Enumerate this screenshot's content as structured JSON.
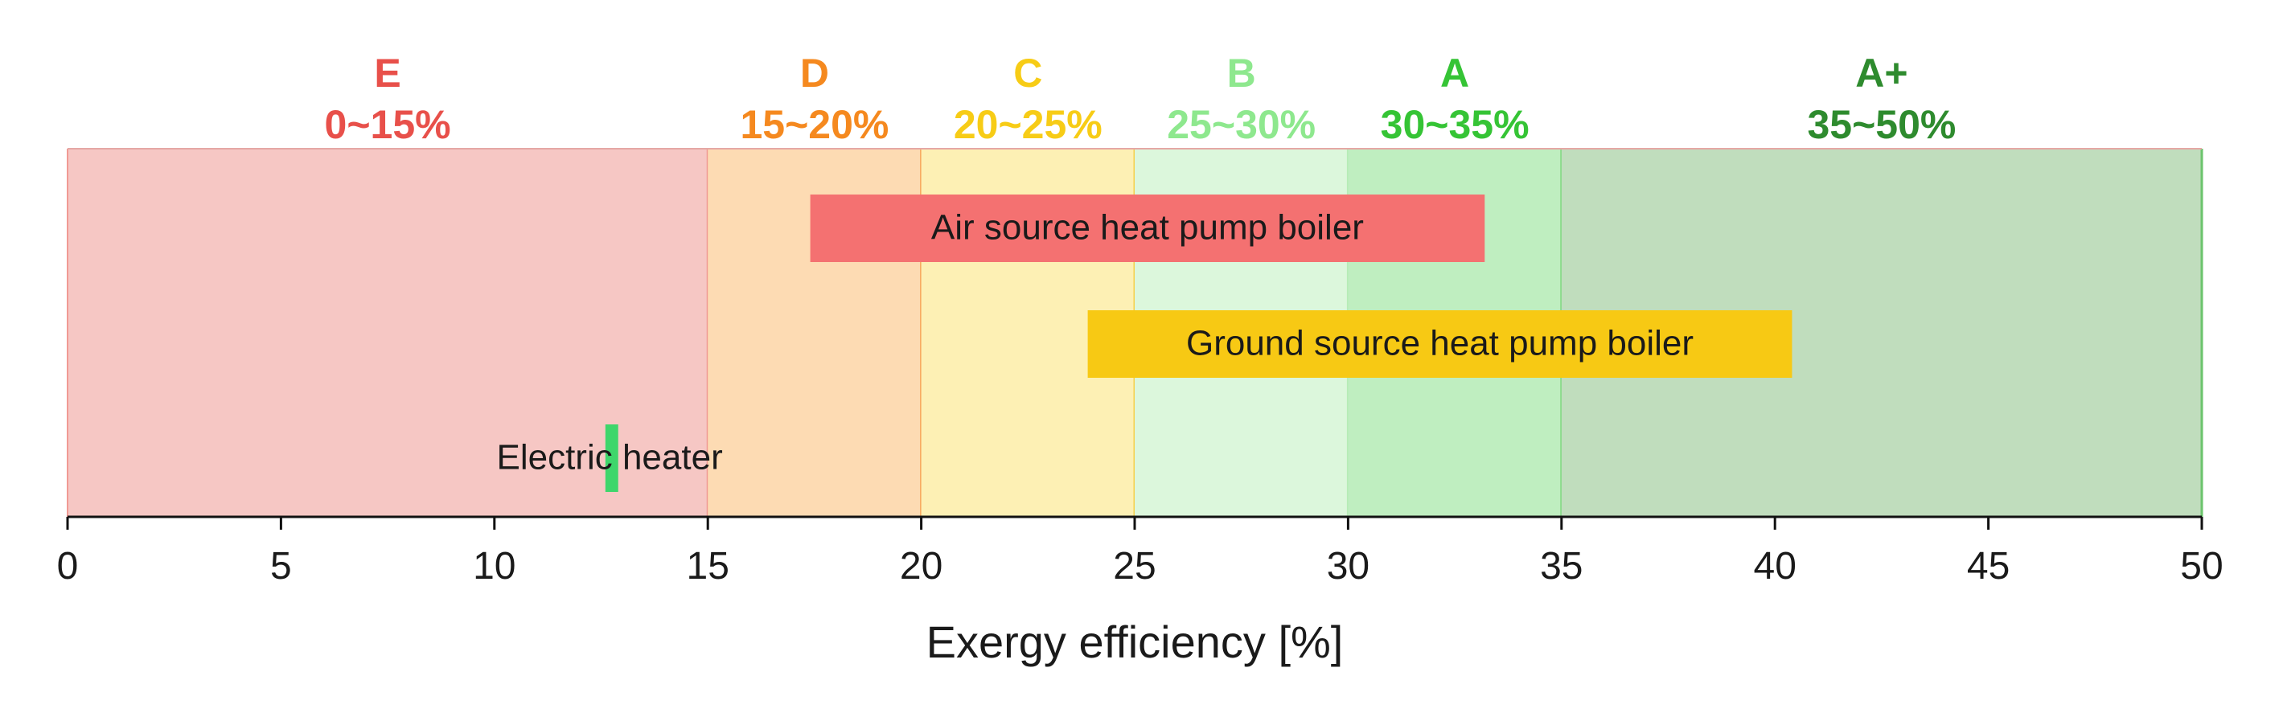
{
  "chart_data": {
    "type": "bar",
    "orientation": "horizontal-range",
    "xlabel": "Exergy efficiency [%]",
    "xlim": [
      0,
      50
    ],
    "xticks": [
      0,
      5,
      10,
      15,
      20,
      25,
      30,
      35,
      40,
      45,
      50
    ],
    "grid": false,
    "grades": [
      {
        "letter": "E",
        "range_label": "0~15%",
        "from": 0,
        "to": 15,
        "color": "#e8504a",
        "fill": "#f6c7c4",
        "line": "#f09a94"
      },
      {
        "letter": "D",
        "range_label": "15~20%",
        "from": 15,
        "to": 20,
        "color": "#f5891f",
        "fill": "#fddbb3",
        "line": "#f7a65a"
      },
      {
        "letter": "C",
        "range_label": "20~25%",
        "from": 20,
        "to": 25,
        "color": "#f7cc16",
        "fill": "#fdf0b4",
        "line": "#f5d04a"
      },
      {
        "letter": "B",
        "range_label": "25~30%",
        "from": 25,
        "to": 30,
        "color": "#8ee88e",
        "fill": "#dcf7dc",
        "line": "#b5ecb5"
      },
      {
        "letter": "A",
        "range_label": "30~35%",
        "from": 30,
        "to": 35,
        "color": "#35c435",
        "fill": "#bfeec0",
        "line": "#7fd87f"
      },
      {
        "letter": "A+",
        "range_label": "35~50%",
        "from": 35,
        "to": 50,
        "color": "#2e8b2e",
        "fill": "#c0ddbd",
        "line": "#6cc46c"
      }
    ],
    "series": [
      {
        "name": "Air source heat pump boiler",
        "start": 17.4,
        "end": 33.2,
        "row": 0,
        "color": "#f47171"
      },
      {
        "name": "Ground source heat pump boiler",
        "start": 23.9,
        "end": 40.4,
        "row": 1,
        "color": "#f7c914"
      },
      {
        "name": "Electric heater",
        "start": 12.6,
        "end": 12.9,
        "row": 2,
        "color": "#3ed66b",
        "label_center": 12.7
      }
    ]
  }
}
